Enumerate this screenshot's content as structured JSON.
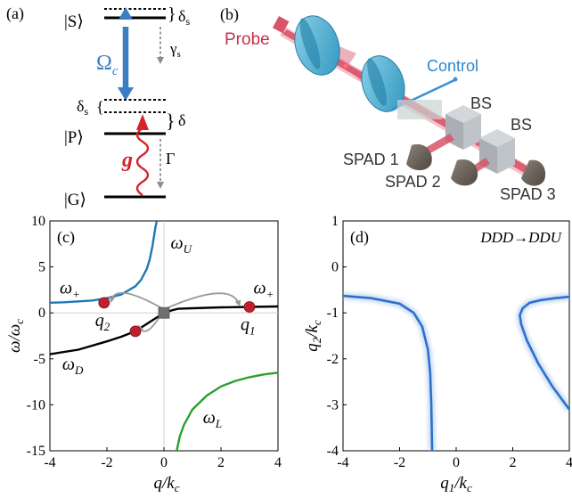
{
  "panel_labels": {
    "a": "(a)",
    "b": "(b)",
    "c": "(c)",
    "d": "(d)"
  },
  "level_diagram": {
    "states": [
      "|S⟩",
      "|P⟩",
      "|G⟩"
    ],
    "delta_s": "δ",
    "delta_s_sub": "s",
    "gamma_s": "γ",
    "gamma_s_sub": "s",
    "omega_c": "Ω",
    "omega_c_sub": "c",
    "delta": "δ",
    "gamma": "Γ",
    "g": "g",
    "colors": {
      "control": "#3a7fc4",
      "probe": "#d6222b",
      "decay": "#8c8c8c"
    }
  },
  "setup": {
    "probe_label": "Probe",
    "control_label": "Control",
    "bs_labels": [
      "BS",
      "BS"
    ],
    "spad_labels": [
      "SPAD 1",
      "SPAD 2",
      "SPAD 3"
    ],
    "colors": {
      "beam": "#d9536b",
      "lens": "#4fb3d4",
      "control": "#3a8fd6",
      "cube": "#b4bac0"
    }
  },
  "chart_data": [
    {
      "type": "line",
      "panel": "(c)",
      "xlabel": "q/k",
      "xlabel_sub": "c",
      "ylabel": "ω/ω",
      "ylabel_sub": "c",
      "xlim": [
        -4,
        4
      ],
      "ylim": [
        -15,
        10
      ],
      "xticks": [
        -4,
        -2,
        0,
        2,
        4
      ],
      "yticks": [
        10,
        5,
        0,
        -5,
        -10,
        -15
      ],
      "series": [
        {
          "name": "ω",
          "name_sub": "U",
          "color": "#1f77b4",
          "x": [
            -4,
            -3.5,
            -3,
            -2.5,
            -2,
            -1.5,
            -1,
            -0.8,
            -0.6,
            -0.5,
            -0.4,
            -0.3,
            -0.25
          ],
          "y": [
            1.1,
            1.15,
            1.25,
            1.35,
            1.6,
            2.0,
            2.9,
            3.6,
            4.8,
            5.8,
            7.3,
            9.3,
            10
          ]
        },
        {
          "name": "ω",
          "name_sub": "D",
          "color": "#000000",
          "x": [
            -4,
            -3,
            -2,
            -1.5,
            -1,
            -0.5,
            -0.3,
            0,
            0.3,
            0.5,
            1,
            1.5,
            2,
            3,
            4
          ],
          "y": [
            -4.5,
            -4.0,
            -3.1,
            -2.6,
            -2.0,
            -1.0,
            -0.6,
            0,
            0.3,
            0.45,
            0.5,
            0.55,
            0.6,
            0.65,
            0.7
          ]
        },
        {
          "name": "ω",
          "name_sub": "L",
          "color": "#2ca02c",
          "x": [
            0.45,
            0.55,
            0.7,
            1,
            1.5,
            2,
            2.5,
            3,
            3.5,
            4
          ],
          "y": [
            -15,
            -13.5,
            -12.2,
            -10.5,
            -9.0,
            -8.0,
            -7.4,
            -7.0,
            -6.7,
            -6.5
          ]
        }
      ],
      "markers": [
        {
          "label": "q",
          "label_sub": "2",
          "x": -2.1,
          "y": 1.1,
          "color": "#c0202e"
        },
        {
          "label": "",
          "x": -1.0,
          "y": -2.0,
          "color": "#c0202e"
        },
        {
          "label": "q",
          "label_sub": "1",
          "x": 3.0,
          "y": 0.65,
          "color": "#c0202e"
        },
        {
          "label": "",
          "x": 0.0,
          "y": 0.0,
          "color": "#707070",
          "shape": "square"
        }
      ],
      "annotations": [
        {
          "text": "ω",
          "sub": "+",
          "x": -3.3,
          "y": 2.1
        },
        {
          "text": "ω",
          "sub": "+",
          "x": 3.5,
          "y": 2.1
        },
        {
          "text": "ω",
          "sub": "U",
          "x": 0.6,
          "y": 7.0
        },
        {
          "text": "ω",
          "sub": "D",
          "x": -3.2,
          "y": -6.2
        },
        {
          "text": "ω",
          "sub": "L",
          "x": 1.7,
          "y": -12.0
        }
      ],
      "grid": false
    },
    {
      "type": "heatmap",
      "panel": "(d)",
      "title": "DDD→DDU",
      "xlabel": "q",
      "xlabel_sub": "1",
      "xlabel_den": "/k",
      "xlabel_den_sub": "c",
      "ylabel": "q",
      "ylabel_sub": "2",
      "ylabel_den": "/k",
      "ylabel_den_sub": "c",
      "xlim": [
        -4,
        4
      ],
      "ylim": [
        -4,
        1
      ],
      "xticks": [
        -4,
        -2,
        0,
        2,
        4
      ],
      "yticks": [
        1,
        0,
        -1,
        -2,
        -3,
        -4
      ],
      "series": [
        {
          "name": "",
          "color": "#2e6fce",
          "x": [
            -4,
            -3,
            -2,
            -1.5,
            -1.2,
            -1.0,
            -0.92,
            -0.88,
            -0.85
          ],
          "y": [
            -0.63,
            -0.68,
            -0.8,
            -1.0,
            -1.3,
            -1.8,
            -2.3,
            -3.0,
            -4.0
          ]
        },
        {
          "name": "",
          "color": "#2e6fce",
          "x": [
            4,
            3.5,
            3,
            2.6,
            2.35,
            2.25,
            2.3,
            2.5,
            2.9,
            3.4,
            4
          ],
          "y": [
            -0.65,
            -0.68,
            -0.72,
            -0.78,
            -0.9,
            -1.05,
            -1.25,
            -1.6,
            -2.1,
            -2.6,
            -3.1
          ]
        }
      ],
      "grid": false
    }
  ]
}
